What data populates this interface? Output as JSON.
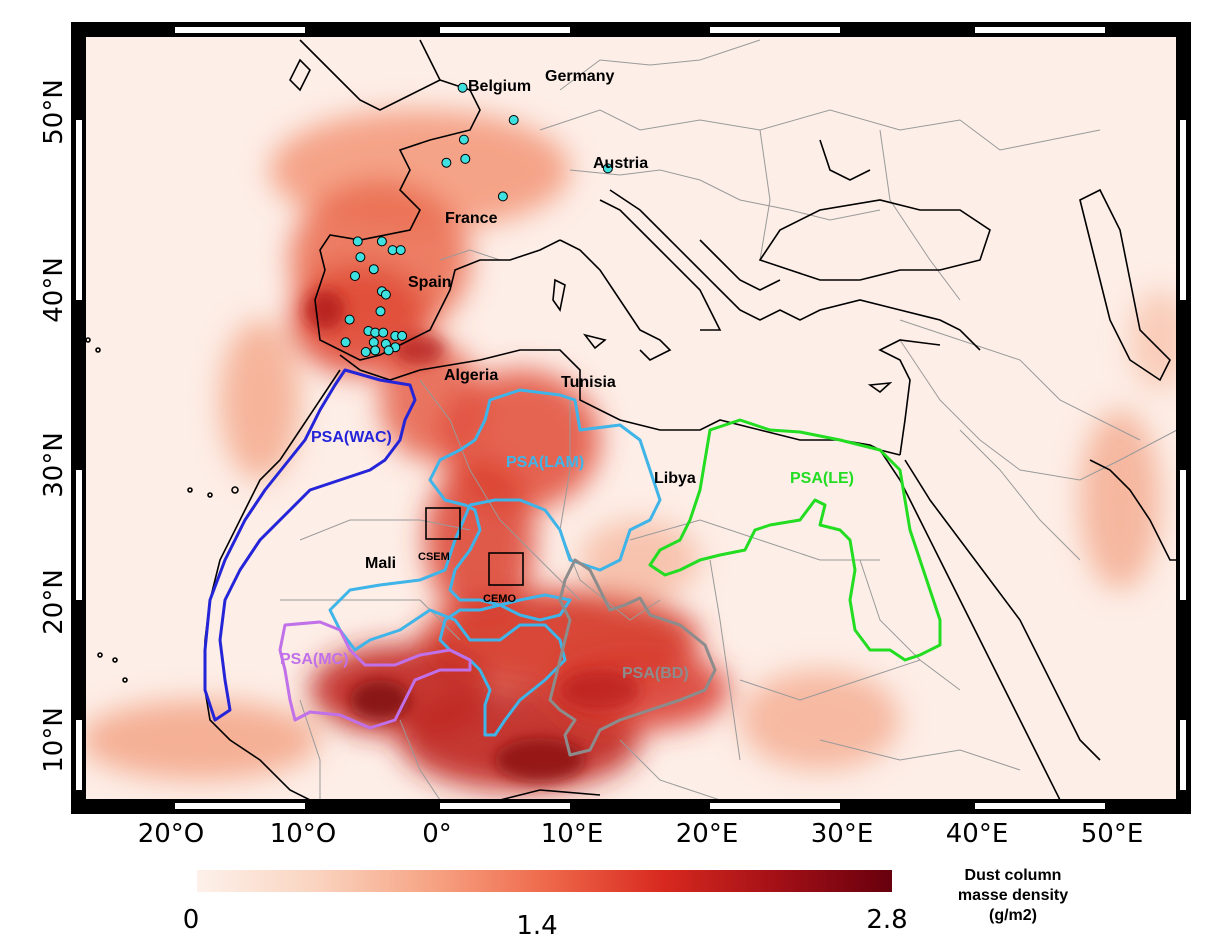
{
  "map": {
    "lat_ticks": [
      "50°N",
      "40°N",
      "30°N",
      "20°N",
      "10°N"
    ],
    "lon_ticks": [
      "20°O",
      "10°O",
      "0°",
      "10°E",
      "20°E",
      "30°E",
      "40°E",
      "50°E"
    ],
    "extent": {
      "lon_min": -26,
      "lon_max": 55,
      "lat_min": 7,
      "lat_max": 55
    },
    "countries": [
      "Belgium",
      "Germany",
      "Austria",
      "France",
      "Spain",
      "Algeria",
      "Tunisia",
      "Libya",
      "Mali"
    ],
    "regions": [
      {
        "label": "PSA(WAC)",
        "color": "#2424d8"
      },
      {
        "label": "PSA(LAM)",
        "color": "#3fb4e8"
      },
      {
        "label": "PSA(LE)",
        "color": "#22dd22"
      },
      {
        "label": "PSA(MC)",
        "color": "#c070e8"
      },
      {
        "label": "PSA(BD)",
        "color": "#8c8c8c"
      }
    ],
    "boxes": [
      {
        "label": "CSEM"
      },
      {
        "label": "CEMO"
      }
    ],
    "station_color": "#3ee0e0",
    "stations": [
      {
        "lon": 2.2,
        "lat": 51.4
      },
      {
        "lon": 6.0,
        "lat": 49.8
      },
      {
        "lon": 2.3,
        "lat": 48.8
      },
      {
        "lon": 2.4,
        "lat": 47.8
      },
      {
        "lon": 1.0,
        "lat": 47.6
      },
      {
        "lon": 13.0,
        "lat": 47.3
      },
      {
        "lon": 5.2,
        "lat": 45.8
      },
      {
        "lon": -5.6,
        "lat": 43.3
      },
      {
        "lon": -3.8,
        "lat": 43.3
      },
      {
        "lon": -3.0,
        "lat": 42.8
      },
      {
        "lon": -2.4,
        "lat": 42.8
      },
      {
        "lon": -5.4,
        "lat": 42.4
      },
      {
        "lon": -4.4,
        "lat": 41.7
      },
      {
        "lon": -5.8,
        "lat": 41.3
      },
      {
        "lon": -3.8,
        "lat": 40.4
      },
      {
        "lon": -3.5,
        "lat": 40.2
      },
      {
        "lon": -3.9,
        "lat": 39.2
      },
      {
        "lon": -6.2,
        "lat": 38.7
      },
      {
        "lon": -4.8,
        "lat": 38.0
      },
      {
        "lon": -4.3,
        "lat": 37.9
      },
      {
        "lon": -3.7,
        "lat": 37.9
      },
      {
        "lon": -2.8,
        "lat": 37.7
      },
      {
        "lon": -2.3,
        "lat": 37.7
      },
      {
        "lon": -6.5,
        "lat": 37.3
      },
      {
        "lon": -4.4,
        "lat": 37.3
      },
      {
        "lon": -3.5,
        "lat": 37.2
      },
      {
        "lon": -2.8,
        "lat": 37.0
      },
      {
        "lon": -5.0,
        "lat": 36.7
      },
      {
        "lon": -4.3,
        "lat": 36.8
      },
      {
        "lon": -3.3,
        "lat": 36.8
      }
    ]
  },
  "colorbar": {
    "min_label": "0",
    "mid_label": "1.4",
    "max_label": "2.8",
    "title_line1": "Dust column",
    "title_line2": "masse density",
    "title_line3": "(g/m2)",
    "colors": [
      "#fdf1ea",
      "#fad4c0",
      "#f6a383",
      "#ef6a4c",
      "#d8291f",
      "#a10f16",
      "#67000d"
    ]
  },
  "colors": {
    "land_background": "#fdeee7",
    "coastline": "#000000",
    "border": "#9a9a9a"
  }
}
